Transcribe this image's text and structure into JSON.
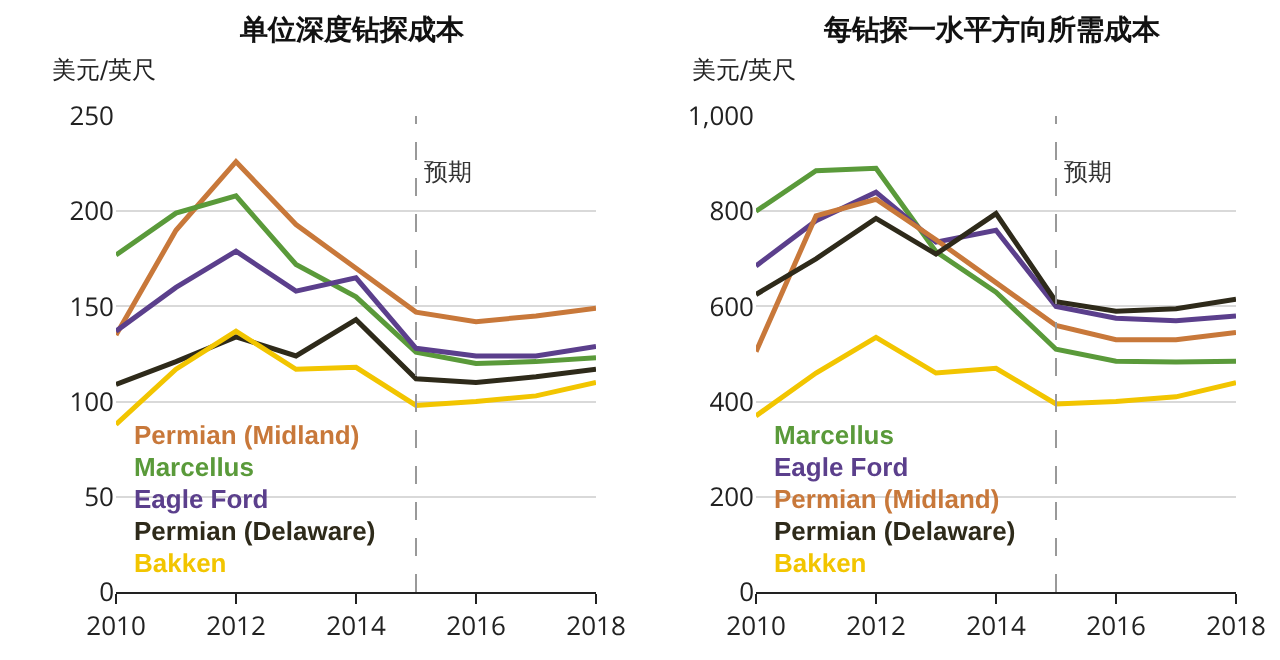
{
  "chart_data": [
    {
      "type": "line",
      "title": "单位深度钻探成本",
      "ylabel": "美元/英尺",
      "x": [
        2010,
        2011,
        2012,
        2013,
        2014,
        2015,
        2016,
        2017,
        2018
      ],
      "xlim": [
        2010,
        2018
      ],
      "xticks": [
        2010,
        2012,
        2014,
        2016,
        2018
      ],
      "ylim": [
        0,
        250
      ],
      "yticks": [
        0,
        50,
        100,
        150,
        200,
        250
      ],
      "grid": "y",
      "legend": "bottom left",
      "marker": "none",
      "series": [
        {
          "name": "Permian (Midland)",
          "color": "#c8783a",
          "values": [
            135,
            190,
            226,
            193,
            170,
            147,
            142,
            145,
            149
          ]
        },
        {
          "name": "Marcellus",
          "color": "#5a9a3a",
          "values": [
            177,
            199,
            208,
            172,
            155,
            126,
            120,
            121,
            123
          ]
        },
        {
          "name": "Eagle Ford",
          "color": "#5b3f8c",
          "values": [
            137,
            160,
            179,
            158,
            165,
            128,
            124,
            124,
            129
          ]
        },
        {
          "name": "Permian (Delaware)",
          "color": "#2e2a1a",
          "values": [
            109,
            121,
            134,
            124,
            143,
            112,
            110,
            113,
            117
          ]
        },
        {
          "name": "Bakken",
          "color": "#f2c500",
          "values": [
            88,
            117,
            137,
            117,
            118,
            98,
            100,
            103,
            110
          ]
        }
      ],
      "ref_lines": [
        {
          "axis": "x",
          "value": 2015,
          "label": "预期",
          "color": "#999999",
          "line_style": "dashed"
        }
      ]
    },
    {
      "type": "line",
      "title": "每钻探一水平方向所需成本",
      "ylabel": "美元/英尺",
      "x": [
        2010,
        2011,
        2012,
        2013,
        2014,
        2015,
        2016,
        2017,
        2018
      ],
      "xlim": [
        2010,
        2018
      ],
      "xticks": [
        2010,
        2012,
        2014,
        2016,
        2018
      ],
      "ylim": [
        0,
        1000
      ],
      "yticks": [
        0,
        200,
        400,
        600,
        800,
        {
          "value": 1000,
          "label": "1,000"
        }
      ],
      "grid": "y",
      "legend": "bottom left",
      "marker": "none",
      "series": [
        {
          "name": "Marcellus",
          "color": "#5a9a3a",
          "values": [
            800,
            885,
            890,
            715,
            630,
            510,
            485,
            483,
            485
          ]
        },
        {
          "name": "Eagle Ford",
          "color": "#5b3f8c",
          "values": [
            685,
            780,
            840,
            735,
            760,
            600,
            575,
            570,
            580
          ]
        },
        {
          "name": "Permian (Midland)",
          "color": "#c8783a",
          "values": [
            505,
            790,
            825,
            740,
            650,
            560,
            530,
            530,
            545
          ]
        },
        {
          "name": "Permian (Delaware)",
          "color": "#2e2a1a",
          "values": [
            625,
            700,
            785,
            710,
            795,
            610,
            590,
            595,
            615
          ]
        },
        {
          "name": "Bakken",
          "color": "#f2c500",
          "values": [
            370,
            460,
            535,
            460,
            470,
            395,
            400,
            410,
            440
          ]
        }
      ],
      "ref_lines": [
        {
          "axis": "x",
          "value": 2015,
          "label": "预期",
          "color": "#999999",
          "line_style": "dashed"
        }
      ]
    }
  ]
}
